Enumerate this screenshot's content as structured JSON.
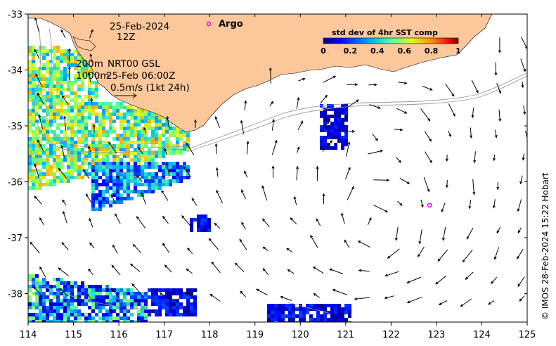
{
  "map": {
    "date_line": "25-Feb-2024",
    "hour_line": "12Z",
    "legend_argo": "Argo",
    "depth_200": "200m",
    "depth_1000": "1000m",
    "product": "NRT00 GSL",
    "valid_time": "25-Feb 06:00Z",
    "scale_text": "0.5m/s (1kt 24h)",
    "credit": "© IMOS 28-Feb-2024 15:22 Hobart",
    "colorbar": {
      "title": "std dev of 4hr SST comp",
      "ticks": [
        "0",
        "0.2",
        "0.4",
        "0.6",
        "0.8",
        "1"
      ]
    },
    "x_ticks": [
      "114",
      "115",
      "116",
      "117",
      "118",
      "119",
      "120",
      "121",
      "122",
      "123",
      "124",
      "125"
    ],
    "y_ticks": [
      "-33",
      "-34",
      "-35",
      "-36",
      "-37",
      "-38"
    ],
    "argo_float": {
      "lon": 122.85,
      "lat": -36.42
    },
    "colors": {
      "land": "#fcc89b",
      "argo": "#e000e0",
      "isobath": "#9a9a9a"
    }
  }
}
